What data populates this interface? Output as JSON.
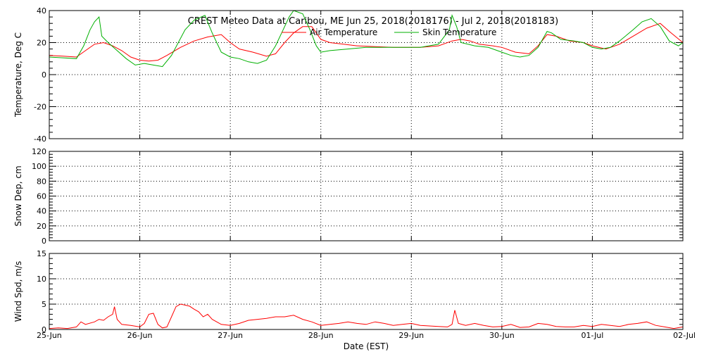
{
  "chart_data": [
    {
      "type": "line",
      "title": "CREST Meteo Data at Caribou, ME   Jun 25, 2018(2018176) - Jul  2, 2018(2018183)",
      "ylabel": "Temperature, Deg C",
      "ylim": [
        -40,
        40
      ],
      "yticks": [
        -40,
        -20,
        0,
        20,
        40
      ],
      "x_ticks": [
        "25-Jun",
        "26-Jun",
        "27-Jun",
        "28-Jun",
        "29-Jun",
        "30-Jun",
        "01-Jul",
        "02-Jul"
      ],
      "xlim": [
        0,
        7
      ],
      "grid": true,
      "legend": "top-center",
      "series": [
        {
          "name": "Air Temperature",
          "color": "#ff0000",
          "points": [
            [
              0,
              12
            ],
            [
              0.15,
              11.5
            ],
            [
              0.3,
              11
            ],
            [
              0.4,
              15
            ],
            [
              0.5,
              19
            ],
            [
              0.6,
              20
            ],
            [
              0.7,
              18
            ],
            [
              0.8,
              15
            ],
            [
              0.9,
              11
            ],
            [
              1.0,
              9
            ],
            [
              1.1,
              8.5
            ],
            [
              1.2,
              9
            ],
            [
              1.3,
              12
            ],
            [
              1.45,
              17
            ],
            [
              1.6,
              21
            ],
            [
              1.75,
              23.5
            ],
            [
              1.9,
              25
            ],
            [
              2.0,
              20
            ],
            [
              2.1,
              16
            ],
            [
              2.25,
              14
            ],
            [
              2.4,
              11.5
            ],
            [
              2.5,
              13
            ],
            [
              2.6,
              20
            ],
            [
              2.7,
              26
            ],
            [
              2.8,
              30
            ],
            [
              2.9,
              30
            ],
            [
              3.0,
              22
            ],
            [
              3.1,
              20
            ],
            [
              3.25,
              19
            ],
            [
              3.4,
              18
            ],
            [
              3.6,
              17.5
            ],
            [
              3.8,
              17
            ],
            [
              4.0,
              17
            ],
            [
              4.1,
              17
            ],
            [
              4.3,
              18
            ],
            [
              4.45,
              21
            ],
            [
              4.55,
              22
            ],
            [
              4.65,
              21
            ],
            [
              4.75,
              19
            ],
            [
              4.9,
              18
            ],
            [
              5.0,
              17
            ],
            [
              5.15,
              14
            ],
            [
              5.3,
              13
            ],
            [
              5.4,
              18
            ],
            [
              5.5,
              25
            ],
            [
              5.6,
              24
            ],
            [
              5.75,
              21
            ],
            [
              5.9,
              20
            ],
            [
              6.0,
              18
            ],
            [
              6.15,
              16
            ],
            [
              6.3,
              19
            ],
            [
              6.45,
              24
            ],
            [
              6.6,
              29
            ],
            [
              6.75,
              32
            ],
            [
              6.85,
              27
            ],
            [
              7.0,
              20
            ]
          ]
        },
        {
          "name": "Skin Temperature",
          "color": "#00b000",
          "points": [
            [
              0,
              11
            ],
            [
              0.15,
              10.5
            ],
            [
              0.3,
              10
            ],
            [
              0.38,
              18
            ],
            [
              0.45,
              28
            ],
            [
              0.5,
              33
            ],
            [
              0.55,
              36
            ],
            [
              0.58,
              24
            ],
            [
              0.65,
              20
            ],
            [
              0.75,
              15
            ],
            [
              0.85,
              10
            ],
            [
              0.95,
              6
            ],
            [
              1.05,
              7
            ],
            [
              1.15,
              6
            ],
            [
              1.25,
              5
            ],
            [
              1.35,
              12
            ],
            [
              1.5,
              28
            ],
            [
              1.6,
              34
            ],
            [
              1.72,
              37
            ],
            [
              1.8,
              26
            ],
            [
              1.9,
              14
            ],
            [
              2.0,
              11
            ],
            [
              2.1,
              10
            ],
            [
              2.2,
              8
            ],
            [
              2.3,
              7
            ],
            [
              2.4,
              9
            ],
            [
              2.5,
              18
            ],
            [
              2.6,
              30
            ],
            [
              2.65,
              36
            ],
            [
              2.7,
              40
            ],
            [
              2.8,
              38
            ],
            [
              2.88,
              28
            ],
            [
              2.95,
              18
            ],
            [
              3.0,
              14
            ],
            [
              3.1,
              15
            ],
            [
              3.3,
              16
            ],
            [
              3.5,
              17
            ],
            [
              3.7,
              17
            ],
            [
              3.9,
              17
            ],
            [
              4.1,
              17
            ],
            [
              4.3,
              19
            ],
            [
              4.42,
              28
            ],
            [
              4.45,
              37
            ],
            [
              4.5,
              30
            ],
            [
              4.55,
              20
            ],
            [
              4.7,
              18
            ],
            [
              4.85,
              17
            ],
            [
              5.0,
              14
            ],
            [
              5.1,
              12
            ],
            [
              5.2,
              11
            ],
            [
              5.3,
              12
            ],
            [
              5.4,
              17
            ],
            [
              5.5,
              27
            ],
            [
              5.55,
              26
            ],
            [
              5.65,
              22
            ],
            [
              5.8,
              21
            ],
            [
              5.9,
              20
            ],
            [
              6.0,
              17
            ],
            [
              6.1,
              16
            ],
            [
              6.2,
              17
            ],
            [
              6.3,
              21
            ],
            [
              6.45,
              28
            ],
            [
              6.55,
              33
            ],
            [
              6.65,
              35
            ],
            [
              6.75,
              30
            ],
            [
              6.85,
              21
            ],
            [
              6.95,
              18
            ],
            [
              7.0,
              20
            ]
          ]
        }
      ]
    },
    {
      "type": "line",
      "ylabel": "Snow Dep, cm",
      "ylim": [
        0,
        120
      ],
      "yticks": [
        0,
        20,
        40,
        60,
        80,
        100,
        120
      ],
      "x_ticks": [
        "25-Jun",
        "26-Jun",
        "27-Jun",
        "28-Jun",
        "29-Jun",
        "30-Jun",
        "01-Jul",
        "02-Jul"
      ],
      "xlim": [
        0,
        7
      ],
      "grid": true,
      "series": []
    },
    {
      "type": "line",
      "ylabel": "Wind Spd, m/s",
      "xlabel": "Date (EST)",
      "ylim": [
        0,
        15
      ],
      "yticks": [
        0,
        5,
        10,
        15
      ],
      "x_ticks": [
        "25-Jun",
        "26-Jun",
        "27-Jun",
        "28-Jun",
        "29-Jun",
        "30-Jun",
        "01-Jul",
        "02-Jul"
      ],
      "xlim": [
        0,
        7
      ],
      "grid": true,
      "series": [
        {
          "color": "#ff0000",
          "points": [
            [
              0,
              0.2
            ],
            [
              0.1,
              0.3
            ],
            [
              0.2,
              0.2
            ],
            [
              0.3,
              0.5
            ],
            [
              0.35,
              1.5
            ],
            [
              0.4,
              1.0
            ],
            [
              0.5,
              1.5
            ],
            [
              0.55,
              2.0
            ],
            [
              0.6,
              1.8
            ],
            [
              0.65,
              2.5
            ],
            [
              0.7,
              3.0
            ],
            [
              0.72,
              4.5
            ],
            [
              0.75,
              2.0
            ],
            [
              0.8,
              1.0
            ],
            [
              0.9,
              0.8
            ],
            [
              1.0,
              0.5
            ],
            [
              1.05,
              1.2
            ],
            [
              1.1,
              3.0
            ],
            [
              1.15,
              3.2
            ],
            [
              1.2,
              1.0
            ],
            [
              1.25,
              0.3
            ],
            [
              1.3,
              0.5
            ],
            [
              1.35,
              2.5
            ],
            [
              1.4,
              4.5
            ],
            [
              1.45,
              5.0
            ],
            [
              1.5,
              4.8
            ],
            [
              1.55,
              4.6
            ],
            [
              1.6,
              4.0
            ],
            [
              1.65,
              3.5
            ],
            [
              1.7,
              2.5
            ],
            [
              1.75,
              3.0
            ],
            [
              1.8,
              2.0
            ],
            [
              1.9,
              1.0
            ],
            [
              2.0,
              0.8
            ],
            [
              2.1,
              1.2
            ],
            [
              2.2,
              1.8
            ],
            [
              2.3,
              2.0
            ],
            [
              2.4,
              2.2
            ],
            [
              2.5,
              2.5
            ],
            [
              2.6,
              2.5
            ],
            [
              2.7,
              2.8
            ],
            [
              2.8,
              2.0
            ],
            [
              2.9,
              1.5
            ],
            [
              3.0,
              0.8
            ],
            [
              3.1,
              1.0
            ],
            [
              3.2,
              1.2
            ],
            [
              3.3,
              1.5
            ],
            [
              3.4,
              1.2
            ],
            [
              3.5,
              1.0
            ],
            [
              3.6,
              1.5
            ],
            [
              3.7,
              1.2
            ],
            [
              3.8,
              0.8
            ],
            [
              3.9,
              1.0
            ],
            [
              4.0,
              1.2
            ],
            [
              4.1,
              0.8
            ],
            [
              4.2,
              0.7
            ],
            [
              4.3,
              0.6
            ],
            [
              4.4,
              0.5
            ],
            [
              4.45,
              1.0
            ],
            [
              4.48,
              3.8
            ],
            [
              4.52,
              1.2
            ],
            [
              4.6,
              0.8
            ],
            [
              4.7,
              1.2
            ],
            [
              4.8,
              0.8
            ],
            [
              4.9,
              0.5
            ],
            [
              5.0,
              0.6
            ],
            [
              5.1,
              1.0
            ],
            [
              5.2,
              0.4
            ],
            [
              5.3,
              0.5
            ],
            [
              5.4,
              1.2
            ],
            [
              5.5,
              1.0
            ],
            [
              5.6,
              0.6
            ],
            [
              5.7,
              0.5
            ],
            [
              5.8,
              0.5
            ],
            [
              5.9,
              0.8
            ],
            [
              6.0,
              0.6
            ],
            [
              6.1,
              1.0
            ],
            [
              6.2,
              0.8
            ],
            [
              6.3,
              0.6
            ],
            [
              6.4,
              1.0
            ],
            [
              6.5,
              1.2
            ],
            [
              6.6,
              1.5
            ],
            [
              6.7,
              0.8
            ],
            [
              6.8,
              0.5
            ],
            [
              6.9,
              0.2
            ],
            [
              7.0,
              0.5
            ]
          ]
        }
      ]
    }
  ]
}
